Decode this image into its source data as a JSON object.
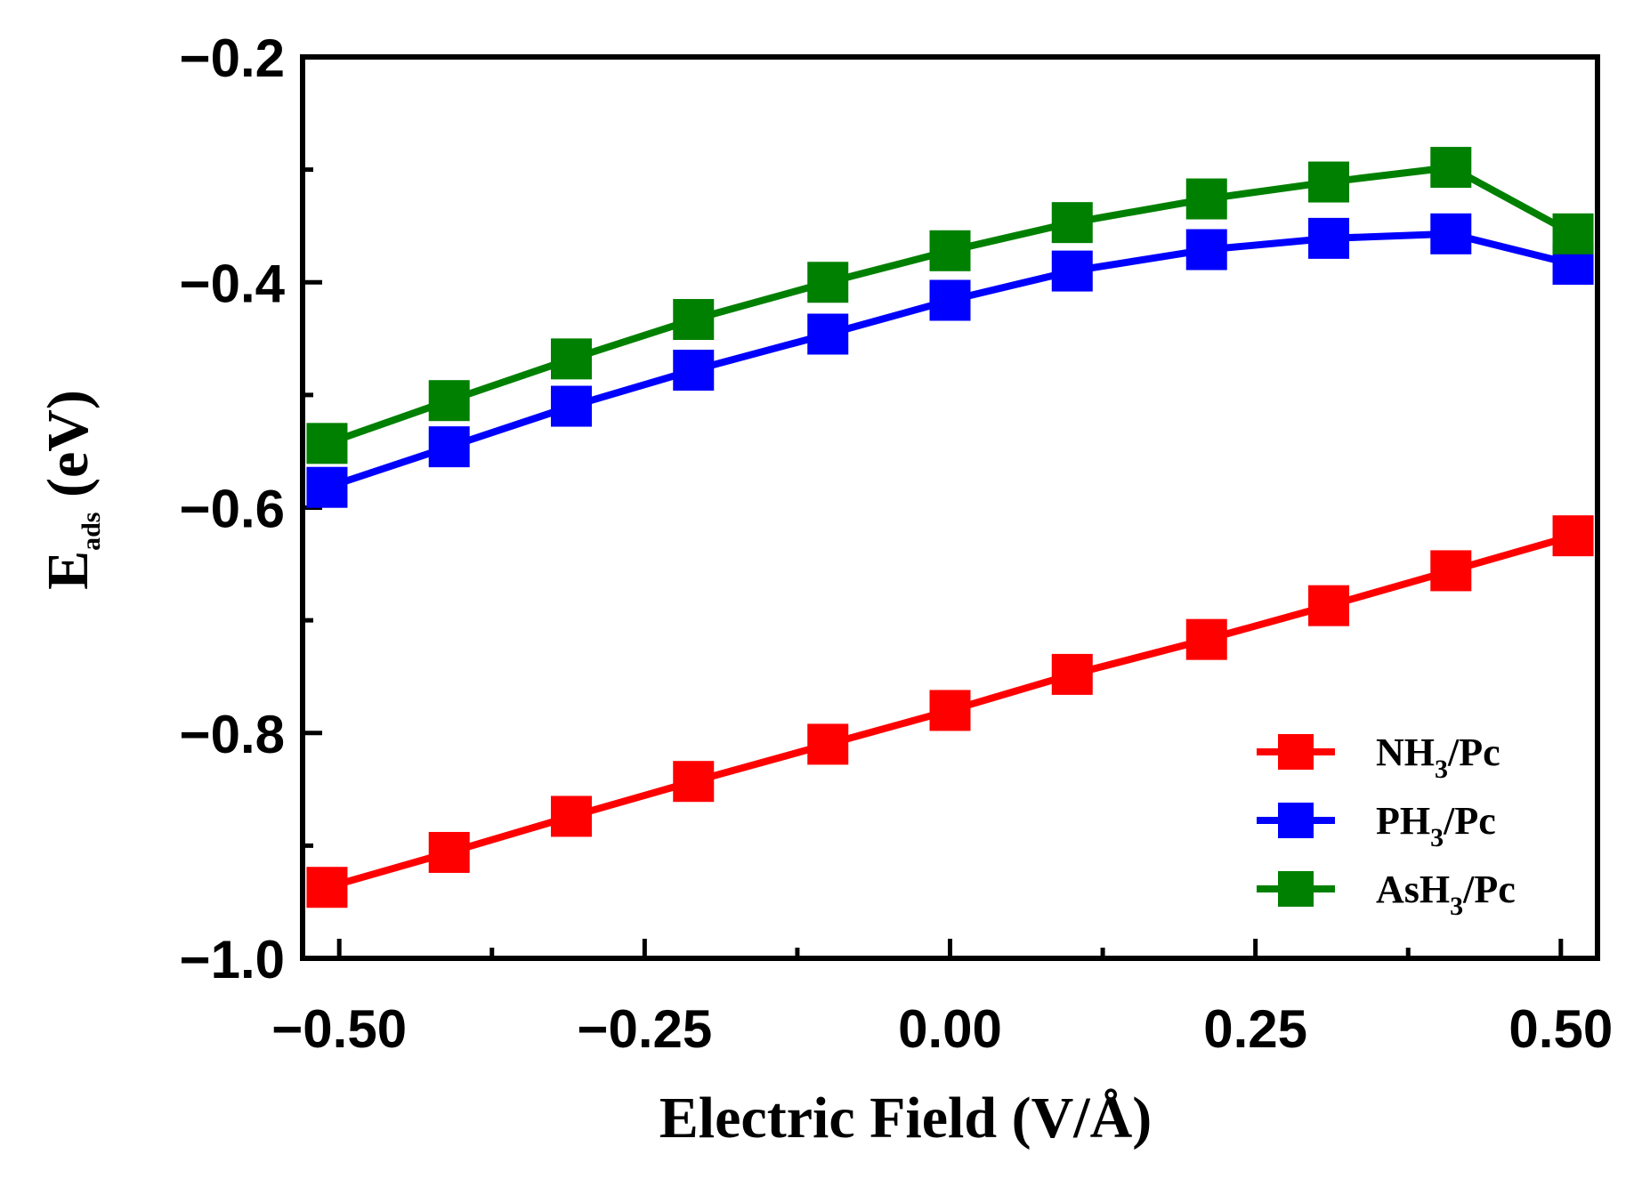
{
  "chart_data": {
    "type": "line",
    "xlabel": "Electric Field  (V/Å)",
    "ylabel": {
      "main": "E",
      "sub": "ads",
      "rest": " (eV)"
    },
    "xlim": [
      -0.53,
      0.53
    ],
    "ylim": [
      -1.0,
      -0.2
    ],
    "x_ticks": [
      -0.5,
      -0.25,
      0.0,
      0.25,
      0.5
    ],
    "x_tick_labels": [
      "−0.50",
      "−0.25",
      "0.00",
      "0.25",
      "0.50"
    ],
    "y_ticks": [
      -1.0,
      -0.8,
      -0.6,
      -0.4,
      -0.2
    ],
    "y_tick_labels": [
      "−1.0",
      "−0.8",
      "−0.6",
      "−0.4",
      "−0.2"
    ],
    "x": [
      -0.51,
      -0.41,
      -0.31,
      -0.21,
      -0.1,
      0.0,
      0.1,
      0.21,
      0.31,
      0.41,
      0.51
    ],
    "series": [
      {
        "name": "NH3/Pc",
        "label": {
          "pre": "NH",
          "sub": "3",
          "post": "/Pc"
        },
        "color": "#ff0000",
        "values": [
          -0.937,
          -0.906,
          -0.874,
          -0.843,
          -0.81,
          -0.78,
          -0.748,
          -0.717,
          -0.687,
          -0.656,
          -0.625
        ]
      },
      {
        "name": "PH3/Pc",
        "label": {
          "pre": "PH",
          "sub": "3",
          "post": "/Pc"
        },
        "color": "#0000ff",
        "values": [
          -0.582,
          -0.546,
          -0.51,
          -0.478,
          -0.446,
          -0.416,
          -0.39,
          -0.371,
          -0.361,
          -0.357,
          -0.384
        ]
      },
      {
        "name": "AsH3/Pc",
        "label": {
          "pre": "AsH",
          "sub": "3",
          "post": "/Pc"
        },
        "color": "#008000",
        "values": [
          -0.543,
          -0.505,
          -0.468,
          -0.433,
          -0.4,
          -0.372,
          -0.347,
          -0.326,
          -0.311,
          -0.298,
          -0.357
        ]
      }
    ]
  }
}
